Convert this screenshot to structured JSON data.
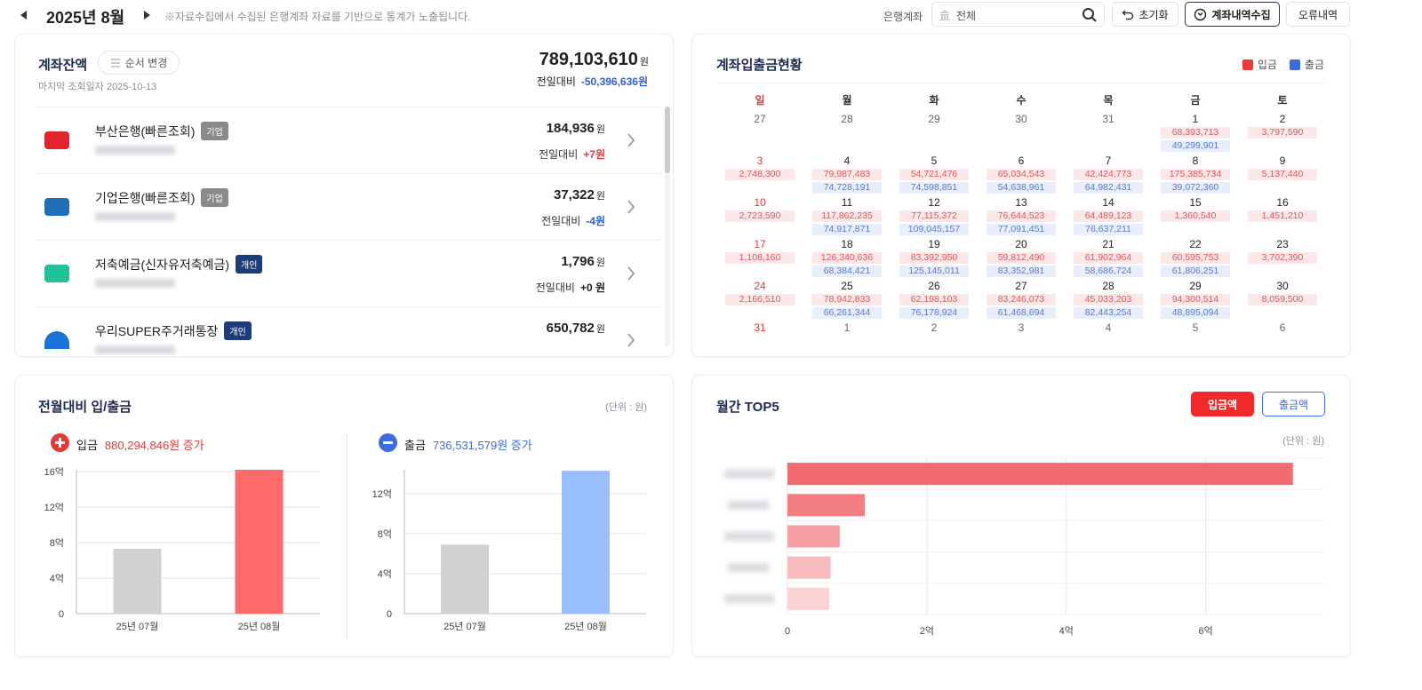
{
  "header": {
    "month": "2025년 8월",
    "notice": "※자료수집에서 수집된 은행계좌 자료를 기반으로 통계가 노출됩니다.",
    "bank_label": "은행계좌",
    "bank_placeholder": "전체",
    "reset": "초기화",
    "collect": "계좌내역수집",
    "errors": "오류내역"
  },
  "balance": {
    "title": "계좌잔액",
    "reorder": "순서 변경",
    "last_checked": "마지막 조회일자 2025-10-13",
    "total": "789,103,610",
    "unit": "원",
    "vs_label": "전일대비",
    "vs_change": "-50,396,636원",
    "accounts": [
      {
        "name": "부산은행(빠른조회)",
        "tag": "기업",
        "tag_color": "#8a8a8a",
        "logo_color": "#e4242b",
        "amount": "184,936",
        "unit": "원",
        "vs_label": "전일대비",
        "change": "+7원",
        "change_color": "#e53935"
      },
      {
        "name": "기업은행(빠른조회)",
        "tag": "기업",
        "tag_color": "#8a8a8a",
        "logo_color": "#1f6fb8",
        "amount": "37,322",
        "unit": "원",
        "vs_label": "전일대비",
        "change": "-4원",
        "change_color": "#2f5fd0"
      },
      {
        "name": "저축예금(신자유저축예금)",
        "tag": "개인",
        "tag_color": "#1c3d78",
        "logo_color": "#1fc29a",
        "amount": "1,796",
        "unit": "원",
        "vs_label": "전일대비",
        "change": "+0 원",
        "change_color": "#222222"
      },
      {
        "name": "우리SUPER주거래통장",
        "tag": "개인",
        "tag_color": "#1c3d78",
        "logo_color": "#1a73d9",
        "amount": "650,782",
        "unit": "원"
      }
    ]
  },
  "calendar": {
    "title": "계좌입출금현황",
    "legend": [
      {
        "name": "입금",
        "color": "#f03a3a"
      },
      {
        "name": "출금",
        "color": "#3d6be0"
      }
    ],
    "weekdays": [
      "일",
      "월",
      "화",
      "수",
      "목",
      "금",
      "토"
    ],
    "weeks": [
      [
        {
          "day": 27,
          "muted": true
        },
        {
          "day": 28,
          "muted": true
        },
        {
          "day": 29,
          "muted": true
        },
        {
          "day": 30,
          "muted": true
        },
        {
          "day": 31,
          "muted": true
        },
        {
          "day": 1,
          "in": "68,393,713",
          "out": "49,299,901"
        },
        {
          "day": 2,
          "in": "3,797,590"
        }
      ],
      [
        {
          "day": 3,
          "in": "2,748,300"
        },
        {
          "day": 4,
          "in": "79,987,483",
          "out": "74,728,191"
        },
        {
          "day": 5,
          "in": "54,721,476",
          "out": "74,598,851"
        },
        {
          "day": 6,
          "in": "65,034,543",
          "out": "54,638,961"
        },
        {
          "day": 7,
          "in": "42,424,773",
          "out": "64,982,431"
        },
        {
          "day": 8,
          "in": "175,385,734",
          "out": "39,072,360"
        },
        {
          "day": 9,
          "in": "5,137,440"
        }
      ],
      [
        {
          "day": 10,
          "in": "2,723,590"
        },
        {
          "day": 11,
          "in": "117,862,235",
          "out": "74,917,871"
        },
        {
          "day": 12,
          "in": "77,115,372",
          "out": "109,045,157"
        },
        {
          "day": 13,
          "in": "76,644,523",
          "out": "77,091,451"
        },
        {
          "day": 14,
          "in": "64,489,123",
          "out": "76,637,211"
        },
        {
          "day": 15,
          "in": "1,360,540"
        },
        {
          "day": 16,
          "in": "1,451,210"
        }
      ],
      [
        {
          "day": 17,
          "in": "1,108,160"
        },
        {
          "day": 18,
          "in": "126,340,636",
          "out": "68,384,421"
        },
        {
          "day": 19,
          "in": "83,392,950",
          "out": "125,145,011"
        },
        {
          "day": 20,
          "in": "59,812,490",
          "out": "83,352,981"
        },
        {
          "day": 21,
          "in": "61,902,964",
          "out": "58,686,724"
        },
        {
          "day": 22,
          "in": "60,595,753",
          "out": "61,806,251"
        },
        {
          "day": 23,
          "in": "3,702,390"
        }
      ],
      [
        {
          "day": 24,
          "in": "2,166,510"
        },
        {
          "day": 25,
          "in": "78,942,833",
          "out": "66,261,344"
        },
        {
          "day": 26,
          "in": "62,198,103",
          "out": "76,178,924"
        },
        {
          "day": 27,
          "in": "83,246,073",
          "out": "61,468,694"
        },
        {
          "day": 28,
          "in": "45,033,203",
          "out": "82,443,254"
        },
        {
          "day": 29,
          "in": "94,300,514",
          "out": "48,895,094"
        },
        {
          "day": 30,
          "in": "8,059,500"
        }
      ],
      [
        {
          "day": 31
        },
        {
          "day": 1,
          "muted": true
        },
        {
          "day": 2,
          "muted": true
        },
        {
          "day": 3,
          "muted": true
        },
        {
          "day": 4,
          "muted": true
        },
        {
          "day": 5,
          "muted": true
        },
        {
          "day": 6,
          "muted": true
        }
      ]
    ]
  },
  "comparison": {
    "title": "전월대비 입/출금",
    "unit_note": "(단위 : 원)",
    "deposit": {
      "label": "입금",
      "summary": "880,294,846원 증가",
      "color": "#e53935"
    },
    "withdrawal": {
      "label": "출금",
      "summary": "736,531,579원 증가",
      "color": "#3d6be0"
    }
  },
  "top5": {
    "title": "월간 TOP5",
    "buttons": [
      "입금액",
      "출금액"
    ],
    "unit_note": "(단위 : 원)"
  },
  "chart_data": [
    {
      "type": "bar",
      "categories": [
        "25년 07월",
        "25년 08월"
      ],
      "values": [
        7.3,
        16.2
      ],
      "colors": [
        "#d3d0d3",
        "#ff6b6b"
      ],
      "ylim": [
        0,
        16.2
      ],
      "yticks": [
        0,
        {
          "value": 4,
          "label": "4억"
        },
        {
          "value": 8,
          "label": "8억"
        },
        {
          "value": 12,
          "label": "12억"
        },
        {
          "value": 16,
          "label": "16억"
        }
      ],
      "grid": true
    },
    {
      "type": "bar",
      "categories": [
        "25년 07월",
        "25년 08월"
      ],
      "values": [
        6.9,
        14.3
      ],
      "colors": [
        "#d3d0d3",
        "#99bfff"
      ],
      "ylim": [
        0,
        14.4
      ],
      "yticks": [
        0,
        {
          "value": 4,
          "label": "4억"
        },
        {
          "value": 8,
          "label": "8억"
        },
        {
          "value": 12,
          "label": "12억"
        }
      ],
      "grid": true
    },
    {
      "type": "hbar",
      "categories": [
        null,
        null,
        null,
        null,
        null
      ],
      "values": [
        7.25,
        1.11,
        0.75,
        0.62,
        0.6
      ],
      "colors": [
        "#f26b6f",
        "#f47f83",
        "#f6a0a3",
        "#f8bcbe",
        "#fad4d5"
      ],
      "xlim": [
        0,
        7.7
      ],
      "xticks": [
        0,
        {
          "value": 2,
          "label": "2억"
        },
        {
          "value": 4,
          "label": "4억"
        },
        {
          "value": 6,
          "label": "6억"
        }
      ],
      "grid": true
    }
  ]
}
